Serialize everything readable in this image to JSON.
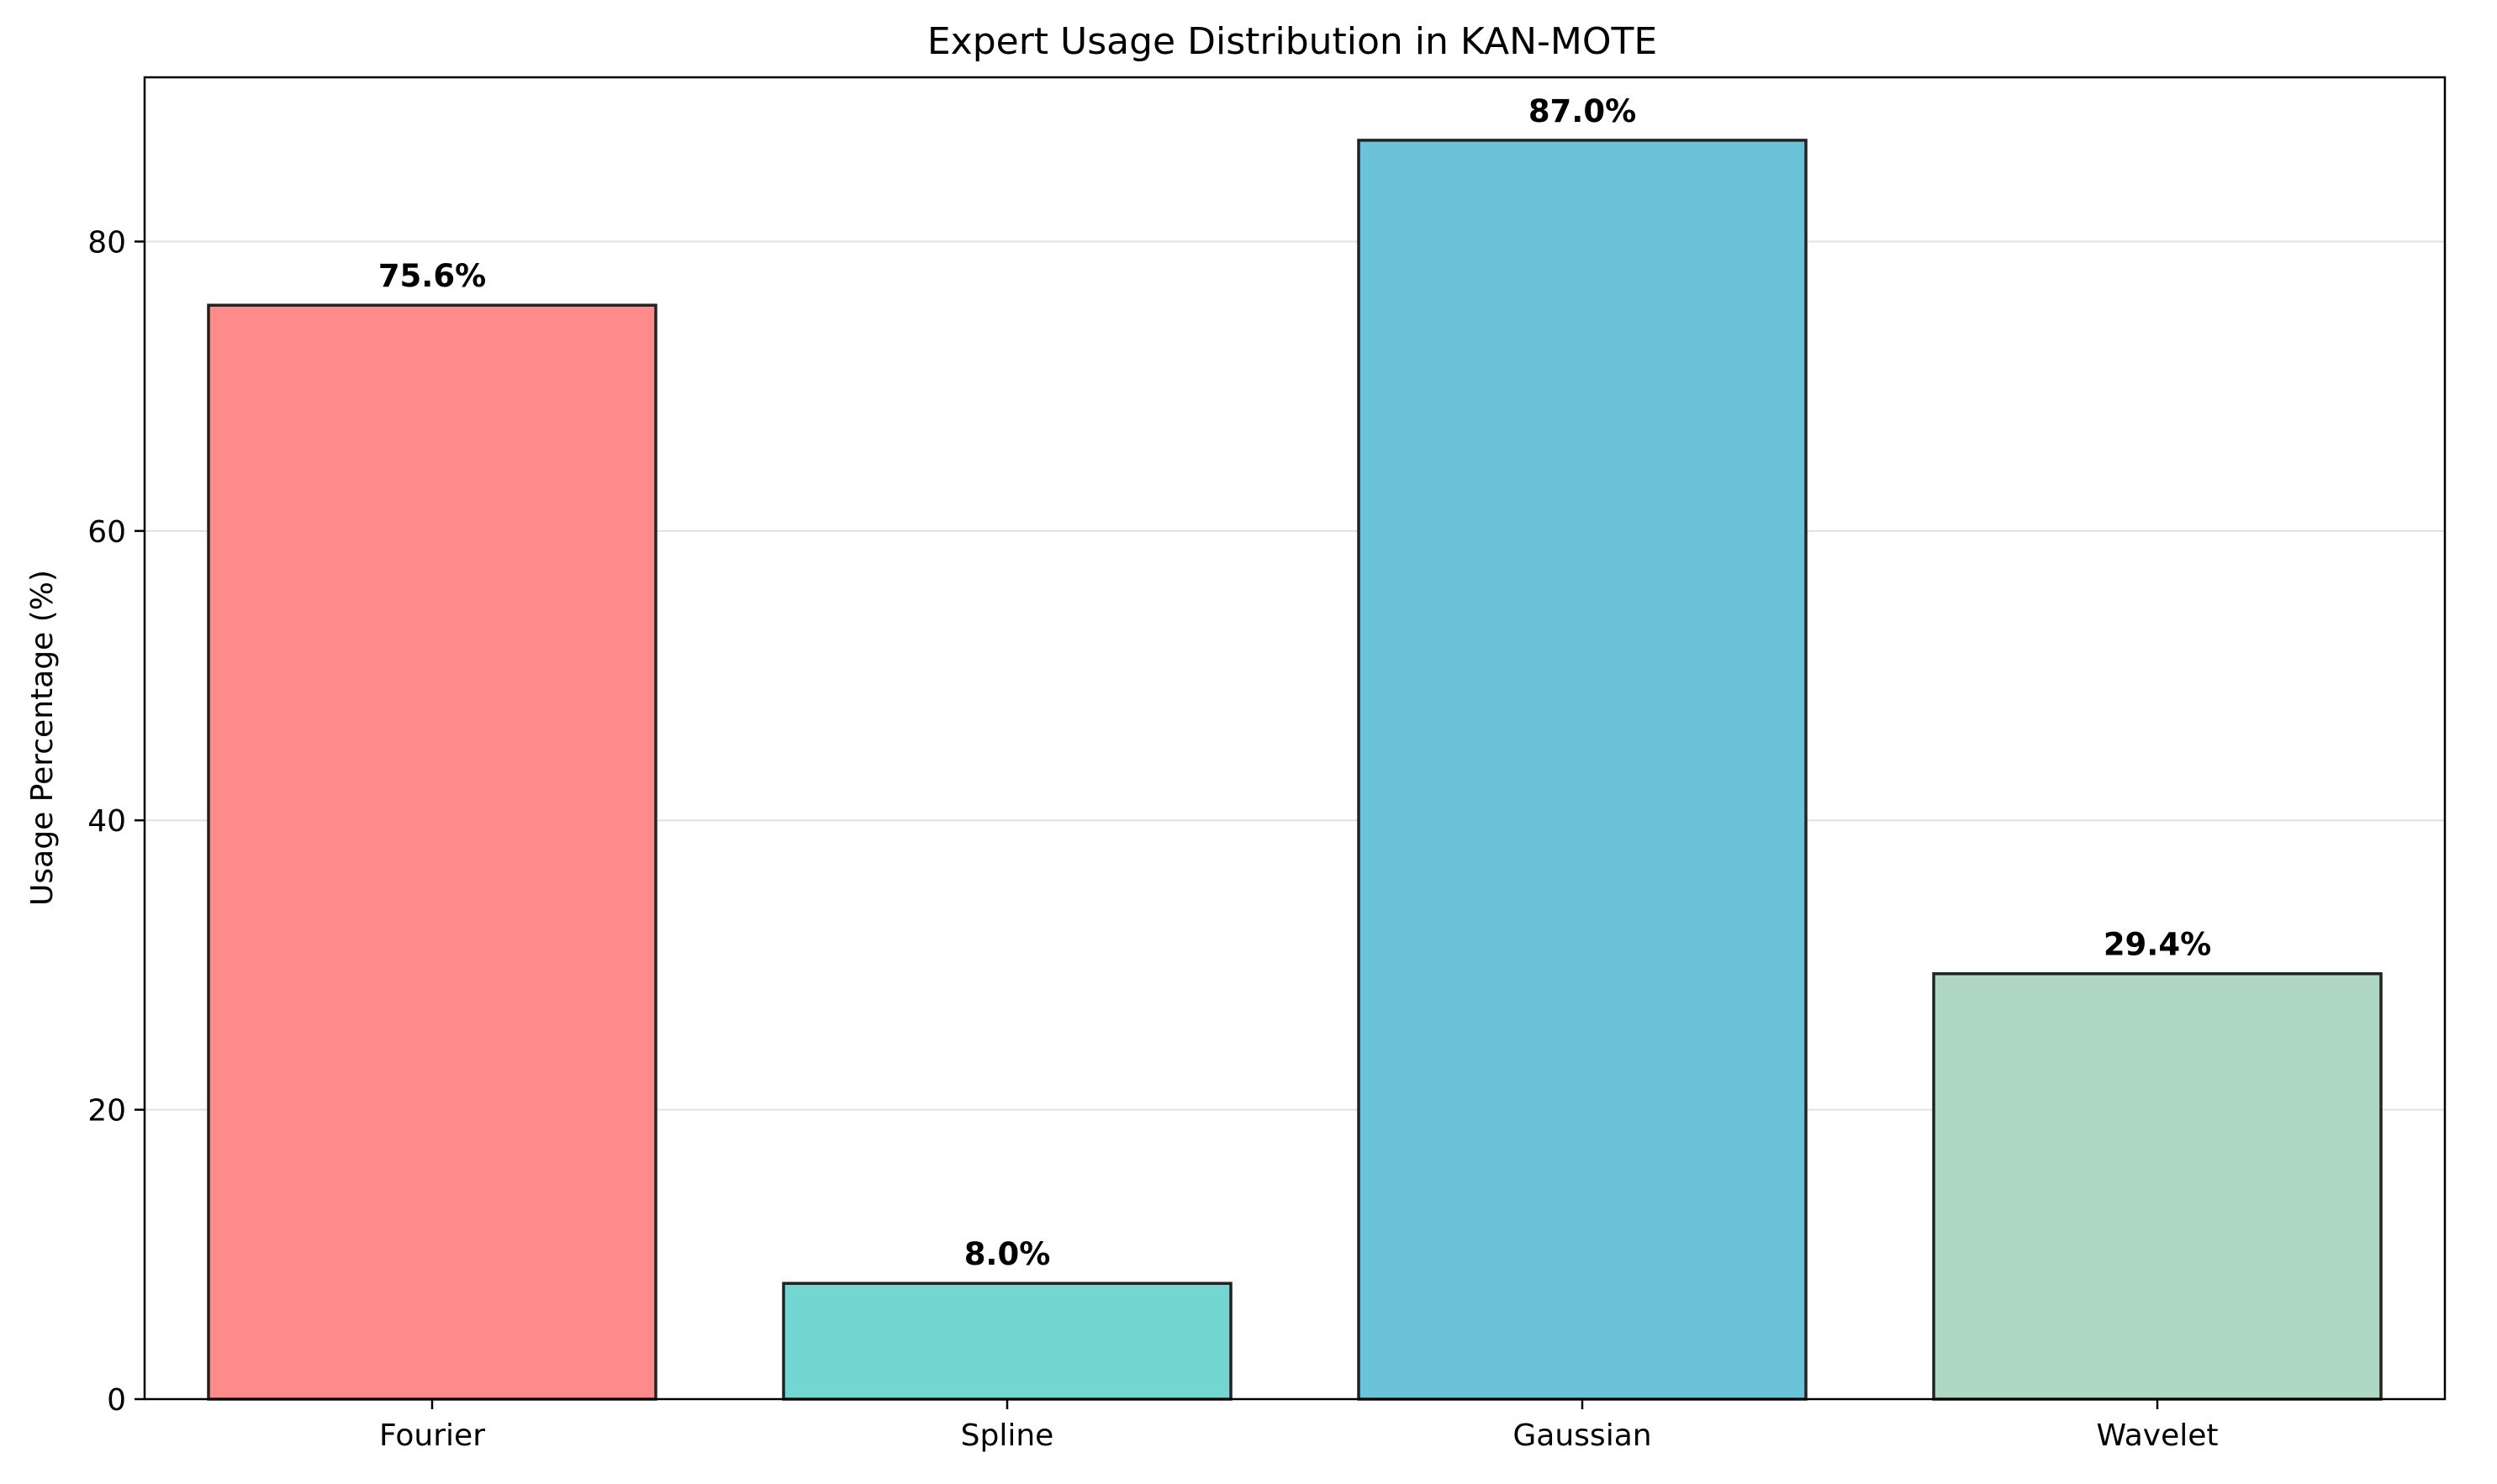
{
  "chart_data": {
    "type": "bar",
    "title": "Expert Usage Distribution in KAN-MOTE",
    "xlabel": "",
    "ylabel": "Usage Percentage (%)",
    "categories": [
      "Fourier",
      "Spline",
      "Gaussian",
      "Wavelet"
    ],
    "values": [
      75.6,
      8.0,
      87.0,
      29.4
    ],
    "data_labels": [
      "75.6%",
      "8.0%",
      "87.0%",
      "29.4%"
    ],
    "colors": [
      "#ff8a8a",
      "#74d6d0",
      "#6bc3d9",
      "#add6c3"
    ],
    "ylim": [
      0,
      91.35
    ],
    "yticks": [
      0,
      20,
      40,
      60,
      80
    ],
    "ytick_labels": [
      "0",
      "20",
      "40",
      "60",
      "80"
    ],
    "grid": "y-only",
    "legend": "none"
  }
}
